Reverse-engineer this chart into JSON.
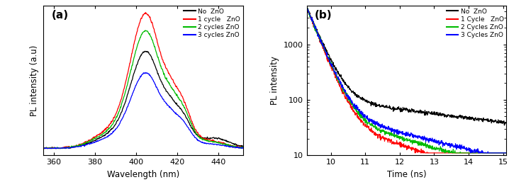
{
  "panel_a": {
    "xlabel": "Wavelength (nm)",
    "ylabel": "PL intensity (a.u)",
    "xlim": [
      355,
      452
    ],
    "xticks": [
      360,
      380,
      400,
      420,
      440
    ],
    "label": "(a)",
    "legend": [
      "No  ZnO",
      "1 cycle   ZnO",
      "2 cycles ZnO",
      "3 cycles ZnO"
    ],
    "colors": [
      "#000000",
      "#ff0000",
      "#00bb00",
      "#0000ff"
    ]
  },
  "panel_b": {
    "xlabel": "Time (ns)",
    "ylabel": "PL intensity",
    "xlim": [
      9.3,
      15.1
    ],
    "xticks": [
      10,
      11,
      12,
      13,
      14,
      15
    ],
    "ylim_log": [
      10,
      5000
    ],
    "label": "(b)",
    "legend": [
      "No  ZnO",
      "1 Cycle   ZnO",
      "2 Cycles ZnO",
      "3 Cycles ZnO"
    ],
    "colors": [
      "#000000",
      "#ff0000",
      "#00bb00",
      "#0000ff"
    ]
  },
  "fig_bg": "#ffffff",
  "axes_bg": "#ffffff"
}
